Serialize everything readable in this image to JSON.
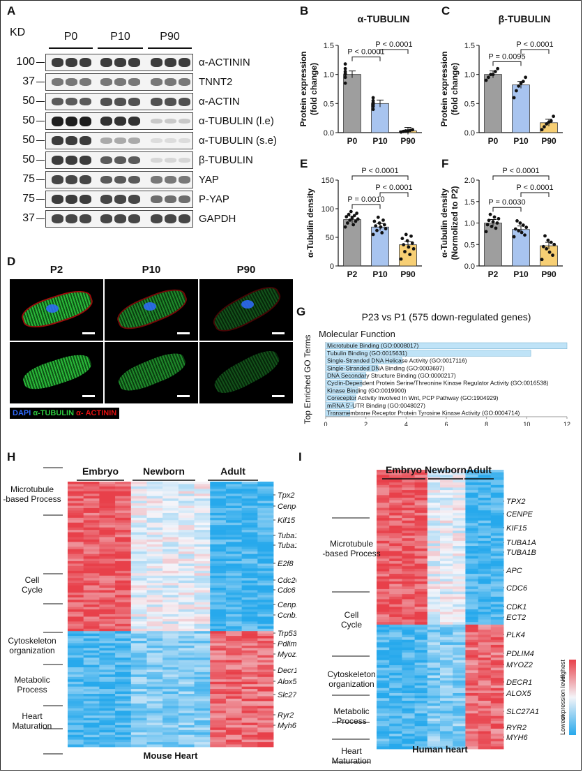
{
  "panels": {
    "A": {
      "label": "A",
      "kd_label": "KD",
      "groups": [
        "P0",
        "P10",
        "P90"
      ],
      "rows": [
        {
          "mw": "100",
          "name": "α-ACTININ",
          "levels": [
            0.85,
            0.85,
            0.85
          ]
        },
        {
          "mw": "37",
          "name": "TNNT2",
          "levels": [
            0.55,
            0.55,
            0.55
          ]
        },
        {
          "mw": "50",
          "name": "α-ACTIN",
          "levels": [
            0.7,
            0.75,
            0.75
          ]
        },
        {
          "mw": "50",
          "name": "α-TUBULIN (l.e)",
          "levels": [
            1.0,
            0.9,
            0.15
          ]
        },
        {
          "mw": "50",
          "name": "α-TUBULIN (s.e)",
          "levels": [
            0.85,
            0.3,
            0.05
          ]
        },
        {
          "mw": "50",
          "name": "β-TUBULIN",
          "levels": [
            0.85,
            0.7,
            0.08
          ]
        },
        {
          "mw": "75",
          "name": "YAP",
          "levels": [
            0.8,
            0.7,
            0.55
          ]
        },
        {
          "mw": "75",
          "name": "P-YAP",
          "levels": [
            0.85,
            0.8,
            0.6
          ]
        },
        {
          "mw": "37",
          "name": "GAPDH",
          "levels": [
            0.8,
            0.8,
            0.8
          ]
        }
      ]
    },
    "D": {
      "label": "D",
      "columns": [
        "P2",
        "P10",
        "P90"
      ],
      "legend": {
        "dapi": "DAPI",
        "tub": "α-TUBULIN",
        "act": "α- ACTININ"
      },
      "colors": {
        "dapi": "#2f6bff",
        "tub": "#2ecc40",
        "act": "#e01010"
      }
    },
    "G": {
      "label": "G",
      "title": "P23 vs P1 (575 down-regulated genes)",
      "subtitle": "Molecular Function",
      "ylabel": "Top Enriched GO Terms",
      "xlabel": "-Log₁₀ Adjusted P Value",
      "bar_color": "#bfe3f7"
    },
    "H": {
      "label": "H",
      "caption": "Mouse Heart",
      "groups": [
        "Embryo",
        "Newborn",
        "Adult"
      ],
      "categories": [
        "Microtubule -based Process",
        "Cell Cycle",
        "Cytoskeleton organization",
        "Metabolic Process",
        "Heart Maturation"
      ],
      "genes": [
        "Tpx2",
        "Cenpe",
        "Kif15",
        "Tuba1a",
        "Tuba1b",
        "E2f8",
        "Cdc20",
        "Cdc6",
        "Cenpk",
        "Ccnb1",
        "Trp53",
        "Pdlim4",
        "Myoz2",
        "Decr1",
        "Alox5",
        "Slc27a1",
        "Ryr2",
        "Myh6"
      ]
    },
    "I": {
      "label": "I",
      "caption": "Human heart",
      "groups": [
        "Embryo",
        "Newborn",
        "Adult"
      ],
      "categories": [
        "Microtubule -based Process",
        "Cell Cycle",
        "Cytoskeleton organization",
        "Metabolic Process",
        "Heart Maturation"
      ],
      "genes": [
        "TPX2",
        "CENPE",
        "KIF15",
        "TUBA1A",
        "TUBA1B",
        "APC",
        "CDC6",
        "CDK1",
        "ECT2",
        "PLK4",
        "PDLIM4",
        "MYOZ2",
        "DECR1",
        "ALOX5",
        "SLC27A1",
        "RYR2",
        "MYH6"
      ],
      "colorbar": {
        "high": "Highest",
        "mid": "expression level",
        "low": "Lowest"
      }
    }
  },
  "colors": {
    "gray": "#9e9e9e",
    "blue": "#a8c4ef",
    "yellow": "#f7cf74",
    "heat_red": "#e8404a",
    "heat_blue": "#27a9ec"
  },
  "chart_data": [
    {
      "id": "B",
      "type": "bar",
      "title": "α-TUBULIN",
      "ylabel": "Protein expression (fold change)",
      "categories": [
        "P0",
        "P10",
        "P90"
      ],
      "values": [
        1.0,
        0.5,
        0.03
      ],
      "ylim": [
        0,
        1.5
      ],
      "yticks": [
        "0.0",
        "0.5",
        "1.0",
        "1.5"
      ],
      "points": [
        [
          0.85,
          0.95,
          1.0,
          1.02,
          1.05,
          1.1,
          1.18
        ],
        [
          0.4,
          0.45,
          0.48,
          0.5,
          0.52,
          0.55,
          0.6
        ],
        [
          0.01,
          0.02,
          0.03,
          0.03,
          0.04,
          0.05
        ]
      ],
      "annotations": [
        {
          "pair": [
            0,
            1
          ],
          "text": "P < 0.0001"
        },
        {
          "pair": [
            1,
            2
          ],
          "text": "P < 0.0001"
        }
      ]
    },
    {
      "id": "C",
      "type": "bar",
      "title": "β-TUBULIN",
      "ylabel": "Protein expression (fold change)",
      "categories": [
        "P0",
        "P10",
        "P90"
      ],
      "values": [
        1.0,
        0.82,
        0.17
      ],
      "ylim": [
        0,
        1.5
      ],
      "yticks": [
        "0.0",
        "0.5",
        "1.0",
        "1.5"
      ],
      "points": [
        [
          0.9,
          0.95,
          1.0,
          1.0,
          1.05,
          1.1
        ],
        [
          0.6,
          0.72,
          0.8,
          0.85,
          0.88,
          0.95
        ],
        [
          0.05,
          0.1,
          0.15,
          0.18,
          0.2,
          0.28
        ]
      ],
      "annotations": [
        {
          "pair": [
            0,
            1
          ],
          "text": "P = 0.0095"
        },
        {
          "pair": [
            1,
            2
          ],
          "text": "P < 0.0001"
        }
      ]
    },
    {
      "id": "E",
      "type": "bar",
      "title": "",
      "ylabel": "α-Tubulin density",
      "categories": [
        "P2",
        "P10",
        "P90"
      ],
      "values": [
        81,
        68,
        37
      ],
      "ylim": [
        0,
        150
      ],
      "yticks": [
        "0",
        "50",
        "100",
        "150"
      ],
      "points": [
        [
          68,
          72,
          75,
          78,
          80,
          82,
          84,
          86,
          88,
          90,
          92,
          95
        ],
        [
          55,
          58,
          62,
          65,
          68,
          70,
          72,
          75,
          78,
          80,
          85
        ],
        [
          12,
          20,
          25,
          30,
          33,
          37,
          40,
          44,
          48,
          52,
          55
        ]
      ],
      "annotations": [
        {
          "pair": [
            0,
            1
          ],
          "text": "P = 0.0010"
        },
        {
          "pair": [
            1,
            2
          ],
          "text": "P < 0.0001"
        },
        {
          "pair": [
            0,
            2
          ],
          "text": "P < 0.0001"
        }
      ]
    },
    {
      "id": "F",
      "type": "bar",
      "title": "",
      "ylabel": "α-Tubulin density (Normolized to P2)",
      "categories": [
        "P2",
        "P10",
        "P90"
      ],
      "values": [
        1.0,
        0.85,
        0.47
      ],
      "ylim": [
        0,
        2.0
      ],
      "yticks": [
        "0.0",
        "0.5",
        "1.0",
        "1.5",
        "2.0"
      ],
      "points": [
        [
          0.8,
          0.88,
          0.92,
          0.96,
          1.0,
          1.03,
          1.06,
          1.1,
          1.14,
          1.2
        ],
        [
          0.68,
          0.72,
          0.78,
          0.82,
          0.86,
          0.9,
          0.95,
          1.0,
          1.05
        ],
        [
          0.15,
          0.25,
          0.32,
          0.4,
          0.45,
          0.5,
          0.55,
          0.6,
          0.7
        ]
      ],
      "annotations": [
        {
          "pair": [
            0,
            1
          ],
          "text": "P = 0.0030"
        },
        {
          "pair": [
            1,
            2
          ],
          "text": "P < 0.0001"
        },
        {
          "pair": [
            0,
            2
          ],
          "text": "P < 0.0001"
        }
      ]
    },
    {
      "id": "G",
      "type": "bar",
      "orientation": "horizontal",
      "xlim": [
        0,
        12
      ],
      "xticks": [
        "0",
        "2",
        "4",
        "6",
        "8",
        "10",
        "12"
      ],
      "categories": [
        "Microtubule Binding (GO:0008017)",
        "Tubulin Binding (GO:0015631)",
        "Single-Stranded DNA Helicase Activity (GO:0017116)",
        "Single-Stranded DNA Binding (GO:0003697)",
        "DNA Secondary Structure Binding (GO:0000217)",
        "Cyclin-Dependent Protein Serine/Threonine Kinase Regulator Activity (GO:0016538)",
        "Kinase Binding (GO:0019900)",
        "Coreceptor Activity Involved In Wnt, PCP Pathway (GO:1904929)",
        "mRNA 5'-UTR Binding (GO:0048027)",
        "Transmembrane Receptor Protein Tyrosine Kinase Activity (GO:0004714)"
      ],
      "values": [
        12.0,
        10.2,
        3.8,
        2.6,
        2.0,
        1.8,
        1.6,
        1.5,
        1.4,
        1.2
      ]
    }
  ]
}
